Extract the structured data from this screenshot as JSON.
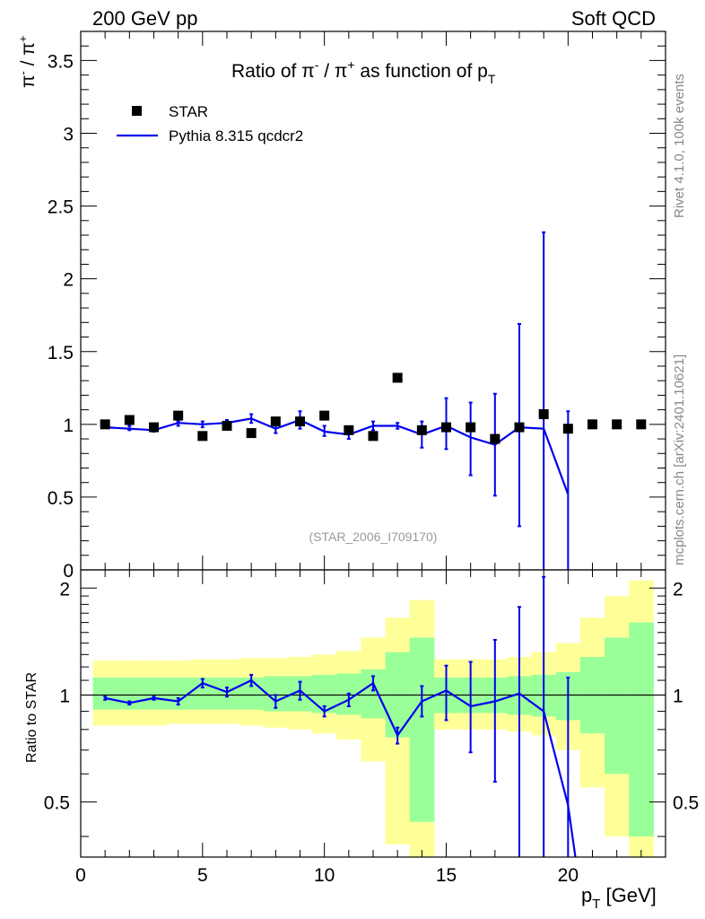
{
  "header": {
    "left": "200 GeV pp",
    "right": "Soft QCD"
  },
  "side_labels": {
    "rivet": "Rivet 4.1.0,  100k events",
    "mcplots": "mcplots.cern.ch [arXiv:2401.10621]"
  },
  "colors": {
    "data": "#000000",
    "mc": "#0000ee",
    "band_inner": "#99ff99",
    "band_outer": "#ffff99"
  },
  "chart_data": [
    {
      "type": "scatter",
      "title": "Ratio of π⁻ / π⁺ as function of p_T",
      "title_parts": {
        "main": "Ratio of π",
        "sup1": "-",
        "mid": " / π",
        "sup2": "+",
        "tail": " as function of p",
        "sub": "T"
      },
      "ylabel_parts": {
        "a": "π",
        "sa": "-",
        "b": " / π",
        "sb": "+"
      },
      "ylim": [
        0,
        3.7
      ],
      "yticks": [
        0,
        0.5,
        1,
        1.5,
        2,
        2.5,
        3,
        3.5
      ],
      "ytick_labels": [
        "0",
        "0.5",
        "1",
        "1.5",
        "2",
        "2.5",
        "3",
        "3.5"
      ],
      "xlim": [
        0,
        24
      ],
      "annotation": "(STAR_2006_I709170)",
      "legend": {
        "placement": "top-left",
        "data_label": "STAR",
        "mc_label": "Pythia 8.315 qcdcr2"
      },
      "series": [
        {
          "name": "STAR",
          "style": "markers",
          "x": [
            1,
            2,
            3,
            4,
            5,
            6,
            7,
            8,
            9,
            10,
            11,
            12,
            13,
            14,
            15,
            16,
            17,
            18,
            19,
            20,
            21,
            22,
            23
          ],
          "y": [
            1.0,
            1.03,
            0.98,
            1.06,
            0.92,
            0.99,
            0.94,
            1.02,
            1.02,
            1.06,
            0.96,
            0.92,
            1.32,
            0.96,
            0.98,
            0.98,
            0.9,
            0.98,
            1.07,
            0.97,
            1.0,
            1.0,
            1.0
          ]
        },
        {
          "name": "Pythia 8.315 qcdcr2",
          "style": "line",
          "x": [
            1,
            2,
            3,
            4,
            5,
            6,
            7,
            8,
            9,
            10,
            11,
            12,
            13,
            14,
            15,
            16,
            17,
            18,
            19,
            20
          ],
          "y": [
            0.98,
            0.97,
            0.96,
            1.01,
            1.0,
            1.01,
            1.04,
            0.97,
            1.03,
            0.95,
            0.93,
            0.99,
            0.99,
            0.93,
            0.99,
            0.91,
            0.86,
            0.98,
            0.97,
            0.52
          ],
          "err_low": [
            0.98,
            0.96,
            0.95,
            0.99,
            0.98,
            0.99,
            1.01,
            0.94,
            0.97,
            0.92,
            0.9,
            0.96,
            0.97,
            0.84,
            0.83,
            0.65,
            0.51,
            0.3,
            -1,
            -1
          ],
          "err_high": [
            0.99,
            0.99,
            0.98,
            1.02,
            1.02,
            1.03,
            1.07,
            1.0,
            1.09,
            0.99,
            0.97,
            1.02,
            1.01,
            1.02,
            1.18,
            1.15,
            1.21,
            1.69,
            2.32,
            1.09
          ]
        }
      ]
    },
    {
      "type": "line",
      "ylabel": "Ratio to STAR",
      "xlabel_main": "p",
      "xlabel_sub": "T",
      "xlabel_tail": " [GeV]",
      "xlim": [
        0,
        24
      ],
      "xticks": [
        0,
        5,
        10,
        15,
        20
      ],
      "xtick_labels": [
        "0",
        "5",
        "10",
        "15",
        "20"
      ],
      "ylim": [
        0.35,
        2.25
      ],
      "yscale": "log",
      "yticks": [
        0.5,
        1,
        2
      ],
      "ytick_labels": [
        "0.5",
        "1",
        "2"
      ],
      "reference_line": 1,
      "bands": {
        "edges": [
          0.5,
          1.5,
          2.5,
          3.5,
          4.5,
          5.5,
          6.5,
          7.5,
          8.5,
          9.5,
          10.5,
          11.5,
          12.5,
          13.5,
          14.5,
          15.5,
          16.5,
          17.5,
          18.5,
          19.5,
          20.5,
          21.5,
          22.5,
          23.5
        ],
        "inner_low": [
          0.91,
          0.91,
          0.91,
          0.91,
          0.91,
          0.91,
          0.91,
          0.9,
          0.9,
          0.89,
          0.88,
          0.86,
          0.76,
          0.44,
          0.89,
          0.89,
          0.89,
          0.88,
          0.87,
          0.85,
          0.78,
          0.6,
          0.4
        ],
        "inner_high": [
          1.12,
          1.12,
          1.12,
          1.12,
          1.12,
          1.12,
          1.12,
          1.13,
          1.13,
          1.14,
          1.15,
          1.18,
          1.32,
          1.45,
          1.12,
          1.12,
          1.12,
          1.13,
          1.14,
          1.16,
          1.28,
          1.45,
          1.6
        ],
        "outer_low": [
          0.82,
          0.82,
          0.82,
          0.83,
          0.83,
          0.83,
          0.82,
          0.81,
          0.8,
          0.78,
          0.75,
          0.65,
          0.38,
          0.3,
          0.8,
          0.8,
          0.8,
          0.79,
          0.77,
          0.7,
          0.55,
          0.4,
          0.25
        ],
        "outer_high": [
          1.25,
          1.25,
          1.25,
          1.25,
          1.26,
          1.26,
          1.27,
          1.27,
          1.28,
          1.3,
          1.33,
          1.45,
          1.65,
          1.85,
          1.26,
          1.26,
          1.26,
          1.28,
          1.32,
          1.4,
          1.65,
          1.9,
          2.1
        ]
      },
      "series": [
        {
          "name": "Pythia 8.315 qcdcr2 / STAR",
          "x": [
            1,
            2,
            3,
            4,
            5,
            6,
            7,
            8,
            9,
            10,
            11,
            12,
            13,
            14,
            15,
            16,
            17,
            18,
            19,
            20,
            20.3
          ],
          "y": [
            0.98,
            0.95,
            0.98,
            0.96,
            1.08,
            1.02,
            1.1,
            0.96,
            1.03,
            0.9,
            0.97,
            1.08,
            0.77,
            0.96,
            1.03,
            0.93,
            0.96,
            1.01,
            0.9,
            0.49,
            0.35
          ],
          "err_low": [
            0.97,
            0.94,
            0.97,
            0.94,
            1.05,
            0.99,
            1.06,
            0.92,
            0.97,
            0.87,
            0.93,
            1.03,
            0.73,
            0.87,
            0.85,
            0.69,
            0.57,
            0.3,
            0.3,
            0.3,
            null
          ],
          "err_high": [
            0.99,
            0.96,
            0.99,
            0.98,
            1.11,
            1.05,
            1.14,
            1.0,
            1.09,
            0.93,
            1.01,
            1.13,
            0.81,
            1.06,
            1.21,
            1.24,
            1.43,
            1.77,
            2.15,
            1.12,
            null
          ]
        }
      ]
    }
  ]
}
